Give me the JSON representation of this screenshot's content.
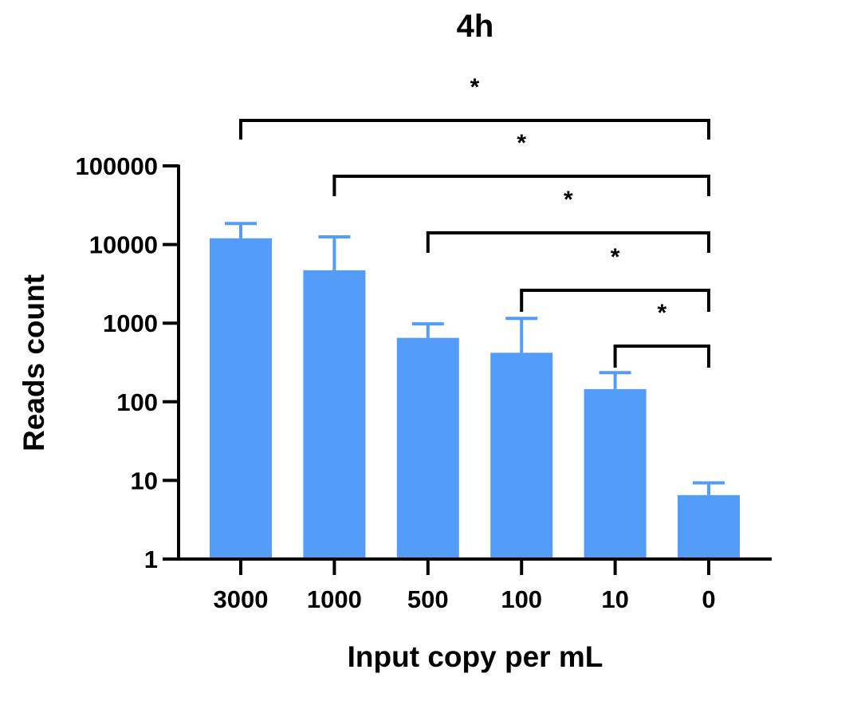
{
  "chart_data": {
    "type": "bar",
    "title": "4h",
    "xlabel": "Input copy per mL",
    "ylabel": "Reads count",
    "y_scale": "log",
    "ylim": [
      1,
      100000
    ],
    "y_ticks": [
      "1",
      "10",
      "100",
      "1000",
      "10000",
      "100000"
    ],
    "categories": [
      "3000",
      "1000",
      "500",
      "100",
      "10",
      "0"
    ],
    "values": [
      12000,
      4700,
      650,
      420,
      145,
      6.5
    ],
    "error_upper": [
      18500,
      12500,
      980,
      1150,
      235,
      9.3
    ],
    "bar_color": "#539CF7",
    "grid": false,
    "legend": "none",
    "significance": [
      {
        "from": "3000",
        "to": "0",
        "label": "*"
      },
      {
        "from": "1000",
        "to": "0",
        "label": "*"
      },
      {
        "from": "500",
        "to": "0",
        "label": "*"
      },
      {
        "from": "100",
        "to": "0",
        "label": "*"
      },
      {
        "from": "10",
        "to": "0",
        "label": "*"
      }
    ]
  }
}
